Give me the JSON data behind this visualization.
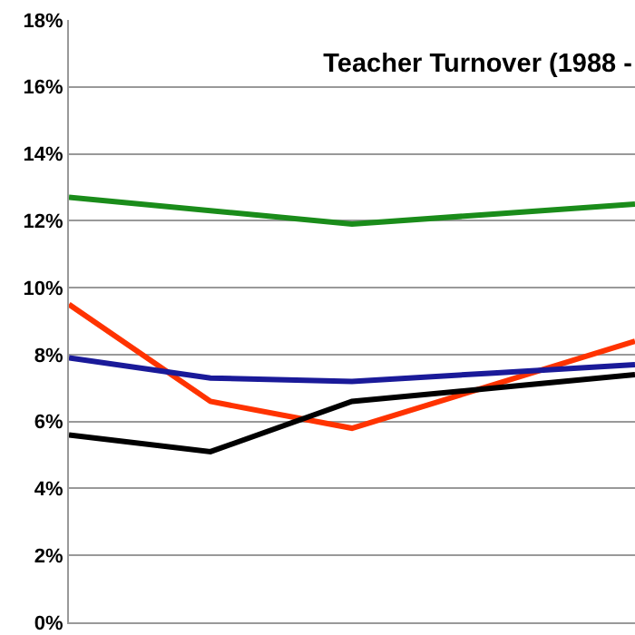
{
  "chart_data": {
    "type": "line",
    "title": "Teacher Turnover (1988 -",
    "categories": [
      null,
      null,
      null,
      null,
      null
    ],
    "series": [
      {
        "color": "#1a8c1a",
        "values": [
          12.7,
          12.3,
          11.9,
          12.2,
          12.5
        ]
      },
      {
        "color": "#ff3300",
        "values": [
          9.5,
          6.6,
          5.8,
          7.1,
          8.4
        ]
      },
      {
        "color": "#1a1a99",
        "values": [
          7.9,
          7.3,
          7.2,
          7.45,
          7.7
        ]
      },
      {
        "color": "#000000",
        "values": [
          5.6,
          5.1,
          6.6,
          7.0,
          7.4
        ]
      }
    ],
    "ylim": [
      0,
      18
    ],
    "yticks": [
      {
        "value": 0,
        "label": "0%"
      },
      {
        "value": 2,
        "label": "2%"
      },
      {
        "value": 4,
        "label": "4%"
      },
      {
        "value": 6,
        "label": "6%"
      },
      {
        "value": 8,
        "label": "8%"
      },
      {
        "value": 10,
        "label": "10%"
      },
      {
        "value": 12,
        "label": "12%"
      },
      {
        "value": 14,
        "label": "14%"
      },
      {
        "value": 16,
        "label": "16%"
      },
      {
        "value": 18,
        "label": "18%"
      }
    ],
    "grid": "y",
    "marker": "none",
    "line_style": "solid",
    "tick_labels": "y"
  }
}
